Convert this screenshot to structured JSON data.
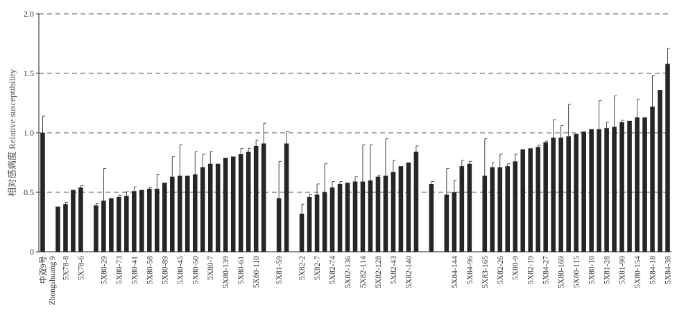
{
  "chart_data": {
    "type": "bar",
    "ylabel": "相对感病度 Relative susceptibility",
    "ylim": [
      0,
      2.0
    ],
    "y_ticks": [
      "0",
      "0.5",
      "1.0",
      "1.5",
      "2.0"
    ],
    "grid": "horizontal dashed",
    "first_category_label": [
      "中双9号",
      "Zhongshuang 9"
    ],
    "bars": [
      {
        "label": "中双9号 Zhongshuang 9",
        "value": 1.0,
        "err": 0.14
      },
      {
        "gap": true
      },
      {
        "label": "",
        "value": 0.38,
        "err": 0
      },
      {
        "label": "5X78-8",
        "value": 0.4,
        "err": 0.015
      },
      {
        "label": "",
        "value": 0.52,
        "err": 0
      },
      {
        "label": "5X78-6",
        "value": 0.54,
        "err": 0.015
      },
      {
        "gap": true
      },
      {
        "label": "",
        "value": 0.39,
        "err": 0.015
      },
      {
        "label": "5X80-29",
        "value": 0.43,
        "err": 0.27
      },
      {
        "label": "",
        "value": 0.45,
        "err": 0
      },
      {
        "label": "5X80-73",
        "value": 0.46,
        "err": 0.015
      },
      {
        "label": "",
        "value": 0.47,
        "err": 0.035
      },
      {
        "label": "5X80-41",
        "value": 0.51,
        "err": 0.035
      },
      {
        "label": "",
        "value": 0.52,
        "err": 0
      },
      {
        "label": "5X80-58",
        "value": 0.53,
        "err": 0.01
      },
      {
        "label": "",
        "value": 0.53,
        "err": 0.12
      },
      {
        "label": "5X80-89",
        "value": 0.58,
        "err": 0
      },
      {
        "label": "",
        "value": 0.63,
        "err": 0.17
      },
      {
        "label": "5X80-45",
        "value": 0.64,
        "err": 0.26
      },
      {
        "label": "",
        "value": 0.64,
        "err": 0
      },
      {
        "label": "5X80-50",
        "value": 0.65,
        "err": 0.19
      },
      {
        "label": "",
        "value": 0.71,
        "err": 0.11
      },
      {
        "label": "5X80-7",
        "value": 0.74,
        "err": 0.1
      },
      {
        "label": "",
        "value": 0.74,
        "err": 0
      },
      {
        "label": "5X80-139",
        "value": 0.79,
        "err": 0
      },
      {
        "label": "",
        "value": 0.8,
        "err": 0
      },
      {
        "label": "5X80-61",
        "value": 0.82,
        "err": 0.05
      },
      {
        "label": "",
        "value": 0.84,
        "err": 0.03
      },
      {
        "label": "5X80-110",
        "value": 0.89,
        "err": 0.05
      },
      {
        "label": "",
        "value": 0.91,
        "err": 0.17
      },
      {
        "gap": true
      },
      {
        "label": "5X81-59",
        "value": 0.45,
        "err": 0.31
      },
      {
        "label": "",
        "value": 0.91,
        "err": 0.1
      },
      {
        "gap": true
      },
      {
        "label": "5X82-2",
        "value": 0.32,
        "err": 0.08
      },
      {
        "label": "",
        "value": 0.46,
        "err": 0.02
      },
      {
        "label": "5X82-7",
        "value": 0.48,
        "err": 0.09
      },
      {
        "label": "",
        "value": 0.5,
        "err": 0.24
      },
      {
        "label": "5X82-74",
        "value": 0.54,
        "err": 0.05
      },
      {
        "label": "",
        "value": 0.57,
        "err": 0.02
      },
      {
        "label": "5X82-136",
        "value": 0.58,
        "err": 0
      },
      {
        "label": "",
        "value": 0.59,
        "err": 0.04
      },
      {
        "label": "5X82-114",
        "value": 0.59,
        "err": 0.31
      },
      {
        "label": "",
        "value": 0.6,
        "err": 0.3
      },
      {
        "label": "5X82-128",
        "value": 0.63,
        "err": 0.01
      },
      {
        "label": "",
        "value": 0.64,
        "err": 0.31
      },
      {
        "label": "5X82-43",
        "value": 0.67,
        "err": 0.1
      },
      {
        "label": "",
        "value": 0.72,
        "err": 0
      },
      {
        "label": "5X82-140",
        "value": 0.75,
        "err": 0
      },
      {
        "label": "",
        "value": 0.84,
        "err": 0.05
      },
      {
        "gap": true
      },
      {
        "label": "",
        "value": 0.57,
        "err": 0.02
      },
      {
        "gap": true
      },
      {
        "label": "",
        "value": 0.48,
        "err": 0.22
      },
      {
        "label": "5X84-144",
        "value": 0.5,
        "err": 0.1
      },
      {
        "label": "",
        "value": 0.72,
        "err": 0.05
      },
      {
        "label": "5X84-96",
        "value": 0.74,
        "err": 0.02
      },
      {
        "gap": true
      },
      {
        "label": "5X83-165",
        "value": 0.64,
        "err": 0.31
      },
      {
        "label": "",
        "value": 0.71,
        "err": 0.04
      },
      {
        "label": "5X82-26",
        "value": 0.71,
        "err": 0.11
      },
      {
        "label": "",
        "value": 0.72,
        "err": 0.02
      },
      {
        "label": "5X80-9",
        "value": 0.76,
        "err": 0.06
      },
      {
        "label": "",
        "value": 0.86,
        "err": 0
      },
      {
        "label": "5X82-19",
        "value": 0.87,
        "err": 0
      },
      {
        "label": "",
        "value": 0.88,
        "err": 0.015
      },
      {
        "label": "5X84-27",
        "value": 0.92,
        "err": 0.01
      },
      {
        "label": "",
        "value": 0.96,
        "err": 0.15
      },
      {
        "label": "5X80-169",
        "value": 0.96,
        "err": 0.1
      },
      {
        "label": "",
        "value": 0.97,
        "err": 0.27
      },
      {
        "label": "5X80-115",
        "value": 0.99,
        "err": 0
      },
      {
        "label": "",
        "value": 1.01,
        "err": 0
      },
      {
        "label": "5X80-10",
        "value": 1.03,
        "err": 0
      },
      {
        "label": "",
        "value": 1.03,
        "err": 0.24
      },
      {
        "label": "5X81-28",
        "value": 1.04,
        "err": 0.05
      },
      {
        "label": "",
        "value": 1.05,
        "err": 0.26
      },
      {
        "label": "5X81-90",
        "value": 1.09,
        "err": 0.015
      },
      {
        "label": "",
        "value": 1.1,
        "err": 0
      },
      {
        "label": "5X80-154",
        "value": 1.13,
        "err": 0.15
      },
      {
        "label": "",
        "value": 1.13,
        "err": 0
      },
      {
        "label": "5X84-18",
        "value": 1.22,
        "err": 0.26
      },
      {
        "label": "",
        "value": 1.36,
        "err": 0
      },
      {
        "label": "5X84-38",
        "value": 1.58,
        "err": 0.13
      }
    ]
  }
}
